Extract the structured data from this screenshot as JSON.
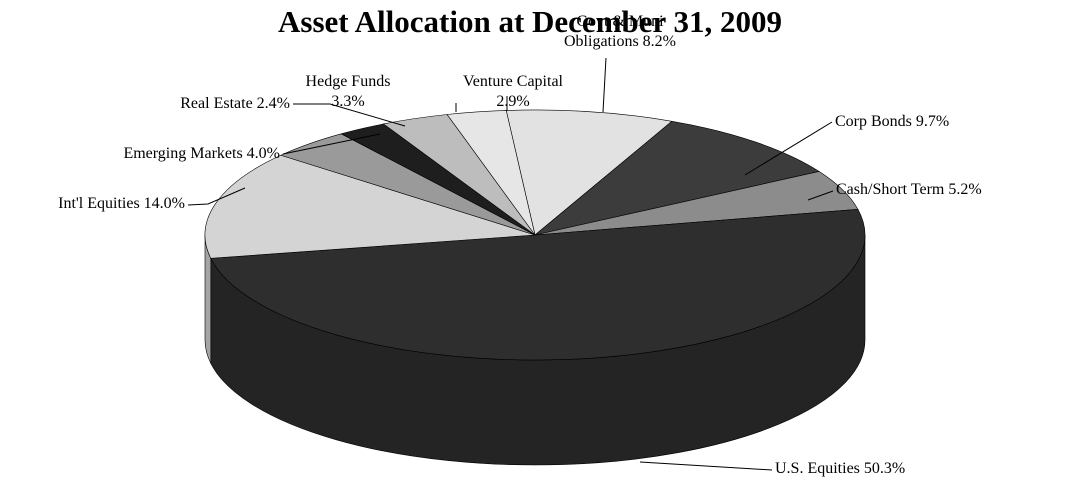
{
  "chart_data": {
    "type": "pie",
    "title": "Asset Allocation at December 31, 2009",
    "categories": [
      "Govt & Muni Obligations",
      "Corp Bonds",
      "Cash/Short Term",
      "U.S. Equities",
      "Int'l Equities",
      "Emerging Markets",
      "Real Estate",
      "Hedge Funds",
      "Venture Capital"
    ],
    "values": [
      8.2,
      9.7,
      5.2,
      50.3,
      14.0,
      4.0,
      2.4,
      3.3,
      2.9
    ],
    "value_labels": [
      "8.2%",
      "9.7%",
      "5.2%",
      "50.3%",
      "14.0%",
      "4.0%",
      "2.4%",
      "3.3%",
      "2.9%"
    ],
    "colors": [
      "#e2e2e2",
      "#3c3c3c",
      "#8c8c8c",
      "#2e2e2e",
      "#d4d4d4",
      "#9a9a9a",
      "#1e1e1e",
      "#bdbdbd",
      "#e6e6e6"
    ]
  }
}
